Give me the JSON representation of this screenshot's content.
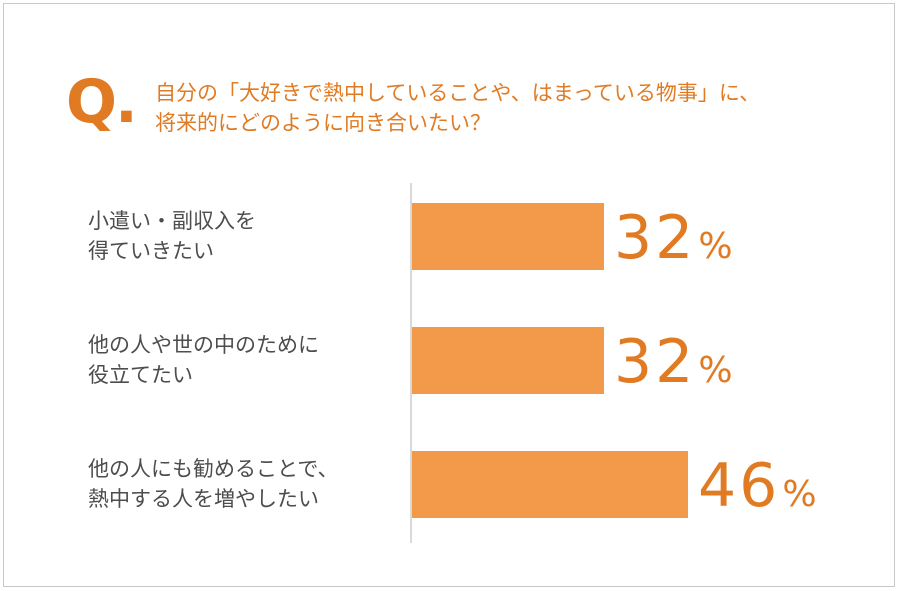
{
  "question": {
    "mark": "Q.",
    "line1": "自分の「大好きで熱中していることや、はまっている物事」に、",
    "line2": "将来的にどのように向き合いたい？"
  },
  "chart_data": {
    "type": "bar",
    "orientation": "horizontal",
    "unit": "%",
    "categories": [
      "小遣い・副収入を得ていきたい",
      "他の人や世の中のために役立てたい",
      "他の人にも勧めることで、熱中する人を増やしたい"
    ],
    "values": [
      32,
      32,
      46
    ],
    "xlim": [
      0,
      100
    ],
    "grid": false,
    "colors": {
      "bar": "#f39a4a",
      "text": "#e07b23",
      "label": "#4d4d4d"
    }
  },
  "rows": [
    {
      "label_line1": "小遣い・副収入を",
      "label_line2": "得ていきたい",
      "value": "32",
      "unit": "%"
    },
    {
      "label_line1": "他の人や世の中のために",
      "label_line2": "役立てたい",
      "value": "32",
      "unit": "%"
    },
    {
      "label_line1": "他の人にも勧めることで、",
      "label_line2": "熱中する人を増やしたい",
      "value": "46",
      "unit": "%"
    }
  ]
}
